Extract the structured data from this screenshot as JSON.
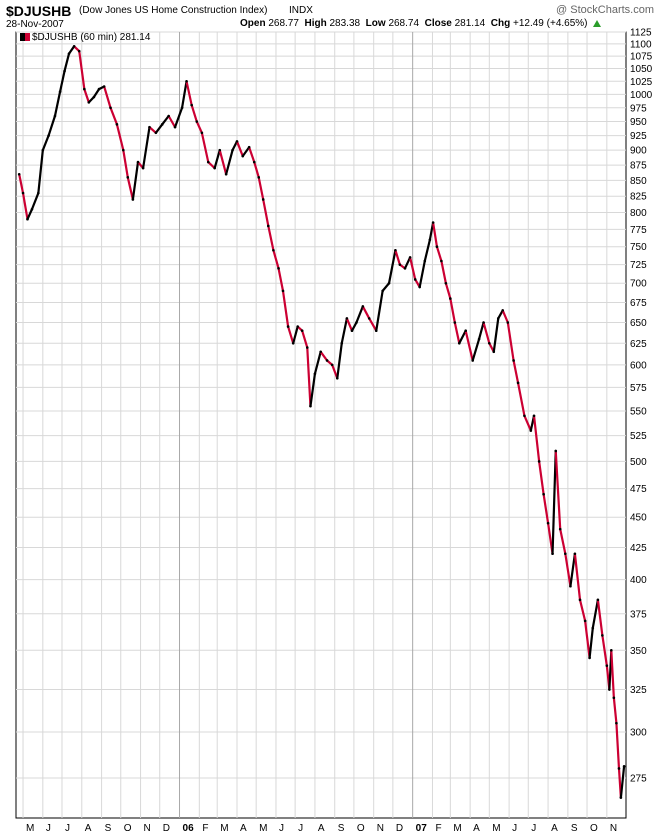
{
  "header": {
    "symbol": "$DJUSHB",
    "description": "(Dow Jones US Home Construction Index)",
    "exchange": "INDX",
    "date": "28-Nov-2007",
    "brand": "@ StockCharts.com",
    "open_label": "Open",
    "open_value": "268.77",
    "high_label": "High",
    "high_value": "283.38",
    "low_label": "Low",
    "low_value": "268.74",
    "close_label": "Close",
    "close_value": "281.14",
    "chg_label": "Chg",
    "chg_value": "+12.49 (+4.65%)",
    "legend": "$DJUSHB (60 min) 281.14"
  },
  "chart_data": {
    "type": "line",
    "title": "$DJUSHB (Dow Jones US Home Construction Index) INDX",
    "interval": "60 min",
    "y_scale": "log",
    "ylim": [
      255,
      1125
    ],
    "y_ticks": [
      275,
      300,
      325,
      350,
      375,
      400,
      425,
      450,
      475,
      500,
      525,
      550,
      575,
      600,
      625,
      650,
      675,
      700,
      725,
      750,
      775,
      800,
      825,
      850,
      875,
      900,
      925,
      950,
      975,
      1000,
      1025,
      1050,
      1075,
      1100,
      1125
    ],
    "x_months": [
      "M",
      "J",
      "J",
      "A",
      "S",
      "O",
      "N",
      "D",
      "06",
      "F",
      "M",
      "A",
      "M",
      "J",
      "J",
      "A",
      "S",
      "O",
      "N",
      "D",
      "07",
      "F",
      "M",
      "A",
      "M",
      "J",
      "J",
      "A",
      "S",
      "O",
      "N"
    ],
    "x_range": [
      "2005-05",
      "2007-11"
    ],
    "grid": true,
    "colors": {
      "up": "#000000",
      "down": "#cc0033",
      "grid": "#d8d8d8",
      "axis": "#000000"
    },
    "series": [
      {
        "name": "$DJUSHB (60 min)",
        "points": [
          [
            "2005-04-25",
            860
          ],
          [
            "2005-05-01",
            830
          ],
          [
            "2005-05-08",
            790
          ],
          [
            "2005-05-15",
            805
          ],
          [
            "2005-05-25",
            830
          ],
          [
            "2005-06-01",
            900
          ],
          [
            "2005-06-10",
            925
          ],
          [
            "2005-06-20",
            960
          ],
          [
            "2005-06-28",
            1005
          ],
          [
            "2005-07-05",
            1045
          ],
          [
            "2005-07-12",
            1080
          ],
          [
            "2005-07-20",
            1095
          ],
          [
            "2005-07-28",
            1085
          ],
          [
            "2005-08-05",
            1010
          ],
          [
            "2005-08-12",
            985
          ],
          [
            "2005-08-20",
            995
          ],
          [
            "2005-08-28",
            1010
          ],
          [
            "2005-09-05",
            1015
          ],
          [
            "2005-09-15",
            975
          ],
          [
            "2005-09-25",
            945
          ],
          [
            "2005-10-05",
            900
          ],
          [
            "2005-10-12",
            855
          ],
          [
            "2005-10-20",
            820
          ],
          [
            "2005-10-28",
            880
          ],
          [
            "2005-11-05",
            870
          ],
          [
            "2005-11-15",
            940
          ],
          [
            "2005-11-25",
            930
          ],
          [
            "2005-12-05",
            945
          ],
          [
            "2005-12-15",
            960
          ],
          [
            "2005-12-25",
            940
          ],
          [
            "2006-01-05",
            975
          ],
          [
            "2006-01-12",
            1025
          ],
          [
            "2006-01-20",
            980
          ],
          [
            "2006-01-28",
            950
          ],
          [
            "2006-02-05",
            930
          ],
          [
            "2006-02-15",
            880
          ],
          [
            "2006-02-25",
            870
          ],
          [
            "2006-03-05",
            900
          ],
          [
            "2006-03-15",
            860
          ],
          [
            "2006-03-25",
            900
          ],
          [
            "2006-04-01",
            915
          ],
          [
            "2006-04-10",
            890
          ],
          [
            "2006-04-20",
            905
          ],
          [
            "2006-04-28",
            880
          ],
          [
            "2006-05-05",
            855
          ],
          [
            "2006-05-12",
            820
          ],
          [
            "2006-05-20",
            780
          ],
          [
            "2006-05-28",
            745
          ],
          [
            "2006-06-05",
            720
          ],
          [
            "2006-06-12",
            690
          ],
          [
            "2006-06-20",
            645
          ],
          [
            "2006-06-28",
            625
          ],
          [
            "2006-07-05",
            645
          ],
          [
            "2006-07-12",
            640
          ],
          [
            "2006-07-20",
            620
          ],
          [
            "2006-07-25",
            555
          ],
          [
            "2006-08-01",
            590
          ],
          [
            "2006-08-10",
            615
          ],
          [
            "2006-08-20",
            605
          ],
          [
            "2006-08-28",
            600
          ],
          [
            "2006-09-05",
            585
          ],
          [
            "2006-09-12",
            625
          ],
          [
            "2006-09-20",
            655
          ],
          [
            "2006-09-28",
            640
          ],
          [
            "2006-10-05",
            650
          ],
          [
            "2006-10-15",
            670
          ],
          [
            "2006-10-25",
            655
          ],
          [
            "2006-11-05",
            640
          ],
          [
            "2006-11-15",
            690
          ],
          [
            "2006-11-25",
            700
          ],
          [
            "2006-12-05",
            745
          ],
          [
            "2006-12-12",
            725
          ],
          [
            "2006-12-20",
            720
          ],
          [
            "2006-12-28",
            735
          ],
          [
            "2007-01-05",
            705
          ],
          [
            "2007-01-12",
            695
          ],
          [
            "2007-01-20",
            730
          ],
          [
            "2007-01-28",
            760
          ],
          [
            "2007-02-02",
            785
          ],
          [
            "2007-02-08",
            750
          ],
          [
            "2007-02-15",
            730
          ],
          [
            "2007-02-22",
            700
          ],
          [
            "2007-03-01",
            680
          ],
          [
            "2007-03-08",
            650
          ],
          [
            "2007-03-15",
            625
          ],
          [
            "2007-03-25",
            640
          ],
          [
            "2007-04-05",
            605
          ],
          [
            "2007-04-15",
            630
          ],
          [
            "2007-04-22",
            650
          ],
          [
            "2007-05-01",
            625
          ],
          [
            "2007-05-08",
            615
          ],
          [
            "2007-05-15",
            655
          ],
          [
            "2007-05-22",
            665
          ],
          [
            "2007-05-30",
            650
          ],
          [
            "2007-06-08",
            605
          ],
          [
            "2007-06-15",
            580
          ],
          [
            "2007-06-25",
            545
          ],
          [
            "2007-07-05",
            530
          ],
          [
            "2007-07-10",
            545
          ],
          [
            "2007-07-18",
            500
          ],
          [
            "2007-07-25",
            470
          ],
          [
            "2007-08-01",
            445
          ],
          [
            "2007-08-08",
            420
          ],
          [
            "2007-08-13",
            510
          ],
          [
            "2007-08-20",
            440
          ],
          [
            "2007-08-28",
            420
          ],
          [
            "2007-09-05",
            395
          ],
          [
            "2007-09-12",
            420
          ],
          [
            "2007-09-20",
            385
          ],
          [
            "2007-09-28",
            370
          ],
          [
            "2007-10-05",
            345
          ],
          [
            "2007-10-10",
            365
          ],
          [
            "2007-10-18",
            385
          ],
          [
            "2007-10-25",
            360
          ],
          [
            "2007-11-01",
            340
          ],
          [
            "2007-11-05",
            325
          ],
          [
            "2007-11-08",
            350
          ],
          [
            "2007-11-12",
            320
          ],
          [
            "2007-11-16",
            305
          ],
          [
            "2007-11-20",
            280
          ],
          [
            "2007-11-23",
            265
          ],
          [
            "2007-11-28",
            281.14
          ]
        ]
      }
    ]
  }
}
